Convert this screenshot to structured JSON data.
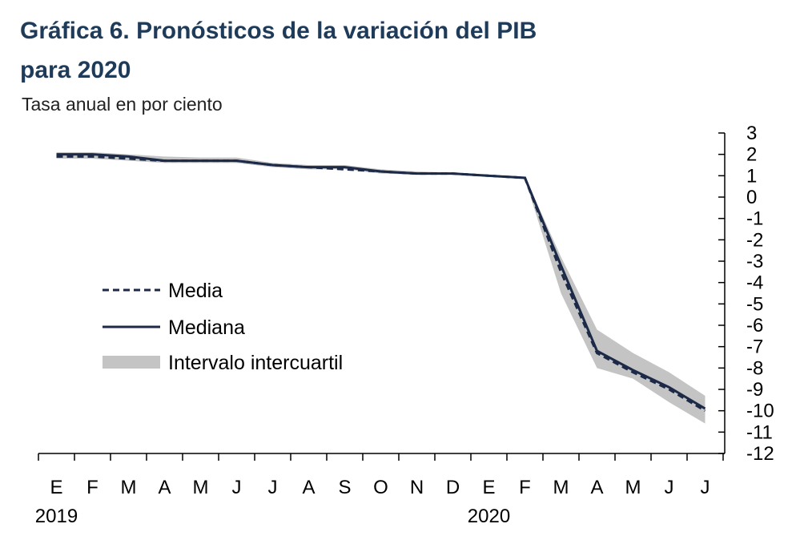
{
  "chart_data": {
    "type": "line",
    "title": [
      "Gráfica 6. Pronósticos de la variación del PIB",
      "para 2020"
    ],
    "subtitle": "Tasa anual en por ciento",
    "categories": [
      "E",
      "F",
      "M",
      "A",
      "M",
      "J",
      "J",
      "A",
      "S",
      "O",
      "N",
      "D",
      "E",
      "F",
      "M",
      "A",
      "M",
      "J",
      "J"
    ],
    "x_groups": [
      {
        "label": "2019",
        "index": 0
      },
      {
        "label": "2020",
        "index": 12
      }
    ],
    "series": [
      {
        "name": "Media",
        "color": "#1c2a48",
        "dash": true,
        "values": [
          1.9,
          1.9,
          1.8,
          1.7,
          1.7,
          1.7,
          1.5,
          1.4,
          1.3,
          1.2,
          1.1,
          1.1,
          1.0,
          0.9,
          -3.5,
          -7.3,
          -8.2,
          -9.0,
          -10.0
        ]
      },
      {
        "name": "Mediana",
        "color": "#1c2a48",
        "dash": false,
        "values": [
          2.0,
          2.0,
          1.9,
          1.7,
          1.7,
          1.7,
          1.5,
          1.4,
          1.4,
          1.2,
          1.1,
          1.1,
          1.0,
          0.9,
          -3.2,
          -7.2,
          -8.1,
          -8.9,
          -9.9
        ]
      }
    ],
    "band": {
      "name": "Intervalo intercuartil",
      "color": "#c4c4c4",
      "low": [
        1.8,
        1.8,
        1.7,
        1.6,
        1.6,
        1.6,
        1.4,
        1.3,
        1.3,
        1.1,
        1.05,
        1.05,
        1.0,
        0.85,
        -4.5,
        -8.0,
        -8.5,
        -9.6,
        -10.6
      ],
      "high": [
        2.1,
        2.1,
        2.0,
        1.9,
        1.85,
        1.85,
        1.6,
        1.5,
        1.5,
        1.3,
        1.2,
        1.15,
        1.05,
        0.95,
        -2.8,
        -6.2,
        -7.3,
        -8.2,
        -9.3
      ]
    },
    "ylim": [
      -12,
      3
    ],
    "yticks": [
      3,
      2,
      1,
      0,
      -1,
      -2,
      -3,
      -4,
      -5,
      -6,
      -7,
      -8,
      -9,
      -10,
      -11,
      -12
    ],
    "y_axis_side": "right"
  }
}
